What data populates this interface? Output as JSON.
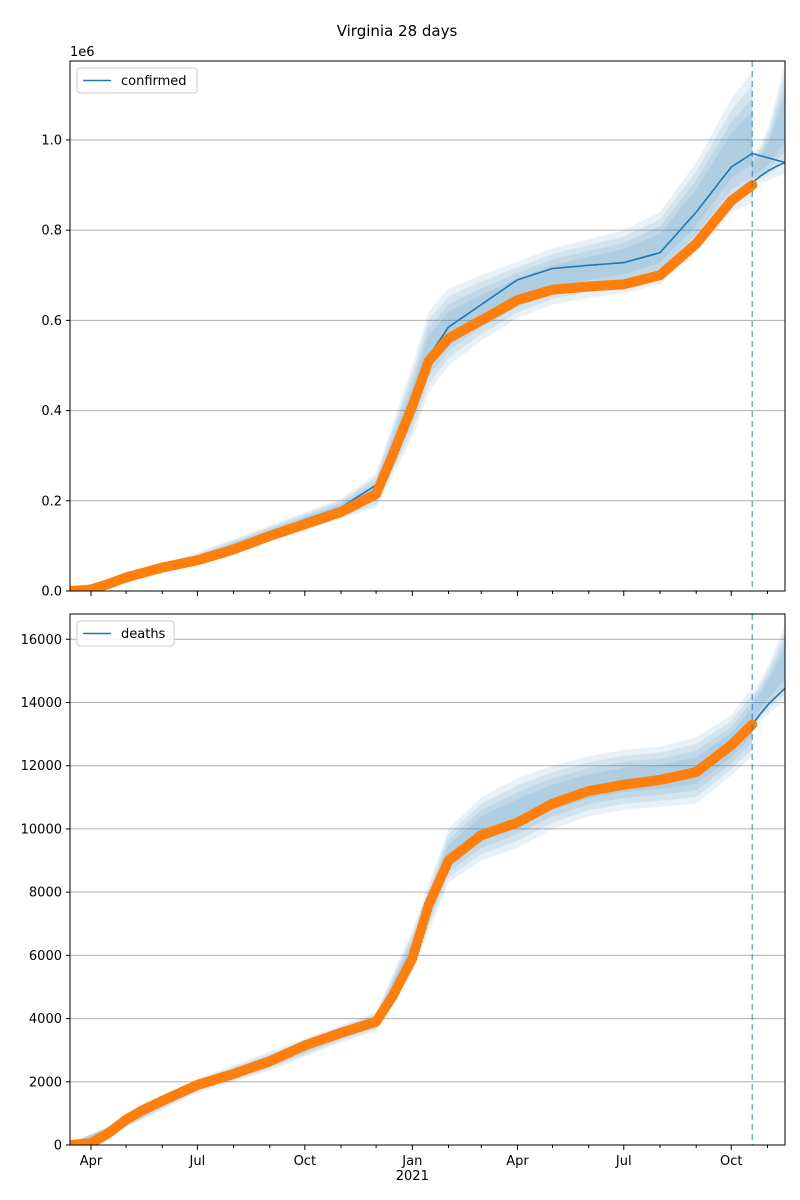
{
  "figure": {
    "title": "Virginia 28 days"
  },
  "colors": {
    "model": "#1f77b4",
    "observed": "#ff7f0e",
    "band": "#1f77b4",
    "grid": "#b0b0b0"
  },
  "chart_data": [
    {
      "type": "line",
      "name": "confirmed",
      "legend": {
        "label": "confirmed",
        "placement": "top-left"
      },
      "x_tick_labels": [],
      "y_ticks": [
        0,
        0.2,
        0.4,
        0.6,
        0.8,
        1.0
      ],
      "y_tick_labels": [
        "0.0",
        "0.2",
        "0.4",
        "0.6",
        "0.8",
        "1.0"
      ],
      "y_multiplier_label": "1e6",
      "ylim": [
        0,
        1.175
      ],
      "xlim": [
        "2020-03-14",
        "2021-11-16"
      ],
      "forecast_start": "2021-10-19",
      "grid": "horizontal",
      "model_series": {
        "x": [
          "2020-03-14",
          "2020-04-15",
          "2020-06-01",
          "2020-07-01",
          "2020-08-01",
          "2020-09-01",
          "2020-10-01",
          "2020-11-01",
          "2020-12-01",
          "2020-12-15",
          "2021-01-01",
          "2021-01-15",
          "2021-02-01",
          "2021-03-01",
          "2021-04-01",
          "2021-05-01",
          "2021-06-01",
          "2021-07-01",
          "2021-08-01",
          "2021-09-01",
          "2021-10-01",
          "2021-10-19",
          "2021-11-16"
        ],
        "values": [
          0.0,
          0.01,
          0.045,
          0.065,
          0.095,
          0.125,
          0.158,
          0.185,
          0.235,
          0.32,
          0.42,
          0.52,
          0.585,
          0.635,
          0.69,
          0.715,
          0.722,
          0.728,
          0.75,
          0.84,
          0.94,
          0.97,
          0.95
        ]
      },
      "forecast_series": {
        "x": [
          "2021-10-19",
          "2021-10-26",
          "2021-11-02",
          "2021-11-09",
          "2021-11-16"
        ],
        "values": [
          0.905,
          0.92,
          0.932,
          0.942,
          0.95
        ]
      },
      "band": {
        "x": [
          "2020-03-14",
          "2020-05-01",
          "2020-07-01",
          "2020-09-01",
          "2020-11-01",
          "2020-12-01",
          "2021-01-01",
          "2021-01-15",
          "2021-02-01",
          "2021-03-01",
          "2021-04-01",
          "2021-05-01",
          "2021-06-01",
          "2021-07-01",
          "2021-08-01",
          "2021-09-01",
          "2021-10-01",
          "2021-10-19"
        ],
        "outer_upper": [
          0.005,
          0.035,
          0.085,
          0.145,
          0.205,
          0.26,
          0.5,
          0.62,
          0.67,
          0.7,
          0.73,
          0.76,
          0.78,
          0.8,
          0.84,
          0.95,
          1.09,
          1.15
        ],
        "outer_lower": [
          0.0,
          0.022,
          0.058,
          0.11,
          0.16,
          0.185,
          0.34,
          0.44,
          0.5,
          0.555,
          0.605,
          0.635,
          0.65,
          0.66,
          0.68,
          0.75,
          0.84,
          0.86
        ]
      },
      "forecast_band": {
        "x": [
          "2021-10-19",
          "2021-10-26",
          "2021-11-02",
          "2021-11-09",
          "2021-11-16"
        ],
        "outer_upper": [
          0.97,
          0.99,
          1.03,
          1.1,
          1.17
        ],
        "outer_lower": [
          0.9,
          0.905,
          0.91,
          0.918,
          0.925
        ]
      },
      "observed_series": {
        "x": [
          "2020-03-14",
          "2020-04-01",
          "2020-04-15",
          "2020-05-01",
          "2020-06-01",
          "2020-07-01",
          "2020-08-01",
          "2020-09-01",
          "2020-10-01",
          "2020-11-01",
          "2020-12-01",
          "2020-12-15",
          "2021-01-01",
          "2021-01-15",
          "2021-02-01",
          "2021-03-01",
          "2021-04-01",
          "2021-05-01",
          "2021-06-01",
          "2021-07-01",
          "2021-08-01",
          "2021-09-01",
          "2021-10-01",
          "2021-10-19"
        ],
        "values": [
          0.0,
          0.003,
          0.015,
          0.03,
          0.052,
          0.068,
          0.092,
          0.122,
          0.148,
          0.175,
          0.215,
          0.3,
          0.41,
          0.51,
          0.56,
          0.6,
          0.645,
          0.668,
          0.675,
          0.68,
          0.7,
          0.77,
          0.865,
          0.9
        ]
      }
    },
    {
      "type": "line",
      "name": "deaths",
      "legend": {
        "label": "deaths",
        "placement": "top-left"
      },
      "x_tick_labels": [
        "Apr",
        "Jul",
        "Oct",
        "Jan\n2021",
        "Apr",
        "Jul",
        "Oct"
      ],
      "x_tick_dates": [
        "2020-04-01",
        "2020-07-01",
        "2020-10-01",
        "2021-01-01",
        "2021-04-01",
        "2021-07-01",
        "2021-10-01"
      ],
      "y_ticks": [
        0,
        2000,
        4000,
        6000,
        8000,
        10000,
        12000,
        14000,
        16000
      ],
      "y_tick_labels": [
        "0",
        "2000",
        "4000",
        "6000",
        "8000",
        "10000",
        "12000",
        "14000",
        "16000"
      ],
      "ylim": [
        0,
        16800
      ],
      "xlim": [
        "2020-03-14",
        "2021-11-16"
      ],
      "forecast_start": "2021-10-19",
      "grid": "horizontal",
      "model_series": {
        "x": [
          "2020-03-14",
          "2020-04-01",
          "2020-05-01",
          "2020-06-01",
          "2020-07-01",
          "2020-08-01",
          "2020-09-01",
          "2020-10-01",
          "2020-11-01",
          "2020-12-01",
          "2020-12-15",
          "2021-01-01",
          "2021-01-15",
          "2021-02-01",
          "2021-03-01",
          "2021-04-01",
          "2021-05-01",
          "2021-06-01",
          "2021-07-01",
          "2021-08-01",
          "2021-09-01",
          "2021-10-01",
          "2021-10-19"
        ],
        "values": [
          0,
          50,
          700,
          1400,
          1850,
          2200,
          2600,
          3150,
          3550,
          3900,
          4800,
          6100,
          7700,
          9000,
          9800,
          10200,
          10850,
          11250,
          11400,
          11500,
          11800,
          12600,
          13300
        ]
      },
      "forecast_series": {
        "x": [
          "2021-10-19",
          "2021-10-26",
          "2021-11-02",
          "2021-11-09",
          "2021-11-16"
        ],
        "values": [
          13300,
          13650,
          13950,
          14200,
          14450
        ]
      },
      "band": {
        "x": [
          "2020-03-14",
          "2020-05-01",
          "2020-07-01",
          "2020-09-01",
          "2020-11-01",
          "2020-12-01",
          "2021-01-01",
          "2021-02-01",
          "2021-03-01",
          "2021-04-01",
          "2021-05-01",
          "2021-06-01",
          "2021-07-01",
          "2021-08-01",
          "2021-09-01",
          "2021-10-01",
          "2021-10-19"
        ],
        "outer_upper": [
          60,
          850,
          2100,
          2950,
          3800,
          4200,
          6800,
          10000,
          11000,
          11600,
          12000,
          12300,
          12500,
          12600,
          12900,
          13600,
          14500
        ],
        "outer_lower": [
          0,
          550,
          1650,
          2350,
          3250,
          3600,
          5500,
          8300,
          9000,
          9400,
          10000,
          10400,
          10600,
          10700,
          10800,
          11700,
          12300
        ]
      },
      "forecast_band": {
        "x": [
          "2021-10-19",
          "2021-10-26",
          "2021-11-02",
          "2021-11-09",
          "2021-11-16"
        ],
        "outer_upper": [
          14300,
          14700,
          15200,
          15800,
          16500
        ],
        "outer_lower": [
          13100,
          13400,
          13650,
          13850,
          14000
        ]
      },
      "observed_series": {
        "x": [
          "2020-03-14",
          "2020-04-01",
          "2020-04-15",
          "2020-05-01",
          "2020-05-15",
          "2020-06-01",
          "2020-07-01",
          "2020-08-01",
          "2020-09-01",
          "2020-10-01",
          "2020-11-01",
          "2020-12-01",
          "2020-12-15",
          "2021-01-01",
          "2021-01-15",
          "2021-02-01",
          "2021-03-01",
          "2021-04-01",
          "2021-05-01",
          "2021-06-01",
          "2021-07-01",
          "2021-08-01",
          "2021-09-01",
          "2021-10-01",
          "2021-10-19"
        ],
        "values": [
          0,
          60,
          350,
          800,
          1100,
          1400,
          1900,
          2250,
          2650,
          3150,
          3550,
          3900,
          4700,
          5900,
          7600,
          9000,
          9800,
          10200,
          10800,
          11200,
          11400,
          11550,
          11800,
          12650,
          13300
        ]
      }
    }
  ]
}
